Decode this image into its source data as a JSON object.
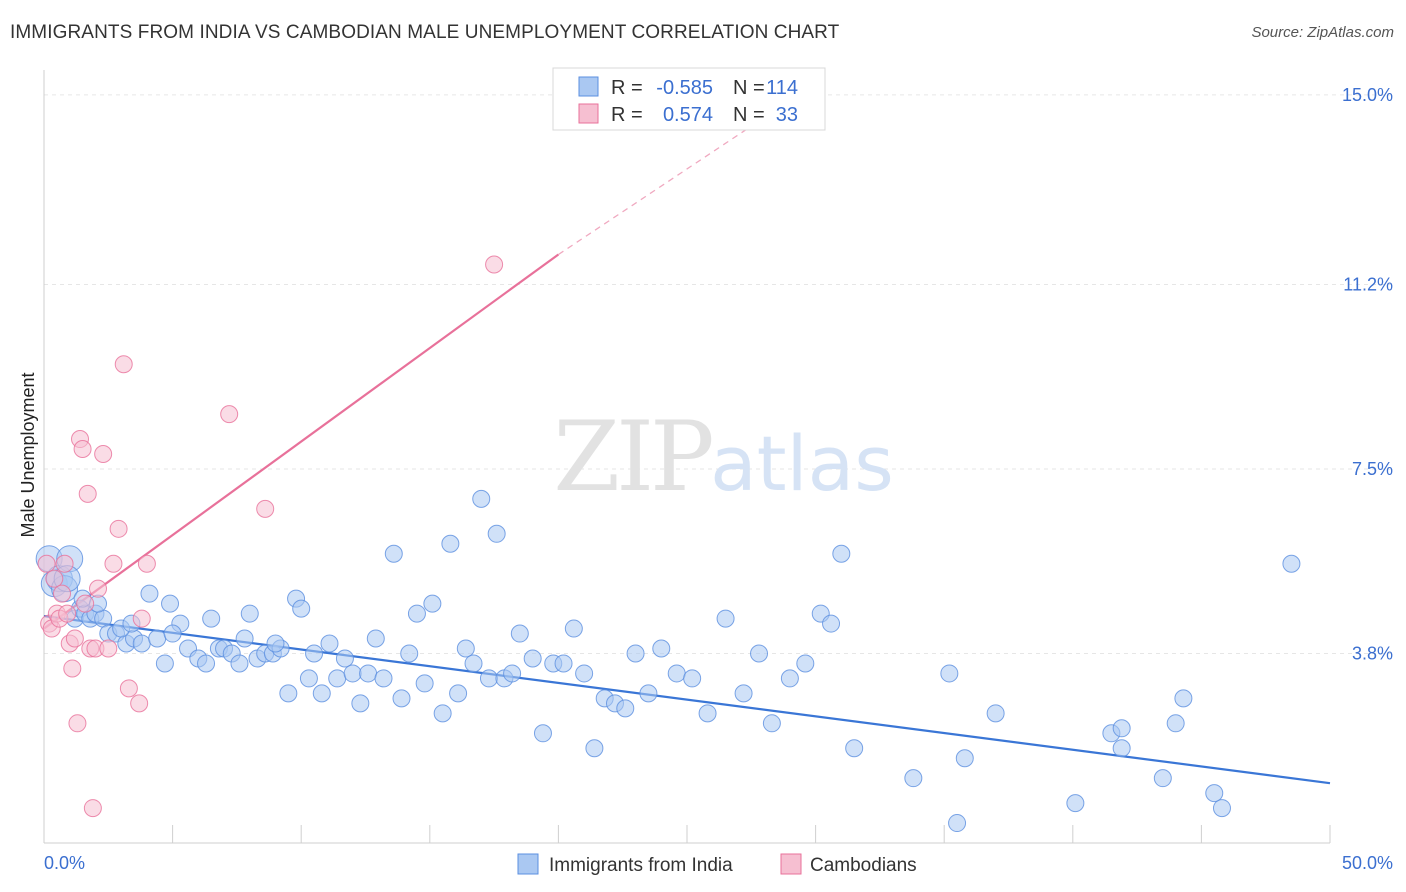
{
  "title": "IMMIGRANTS FROM INDIA VS CAMBODIAN MALE UNEMPLOYMENT CORRELATION CHART",
  "source": "Source: ZipAtlas.com",
  "watermark": {
    "zip": "ZIP",
    "atlas": "atlas"
  },
  "colors": {
    "blue": "#5b8fe0",
    "blue_fill": "#aac8f2",
    "pink": "#e8719a",
    "pink_fill": "#f6bfd1",
    "tick": "#3b6fd0",
    "grid": "#e3e3e3"
  },
  "legend": {
    "rows": [
      {
        "r_label": "R =",
        "r_value": "-0.585",
        "n_label": "N =",
        "n_value": "114"
      },
      {
        "r_label": "R =",
        "r_value": "0.574",
        "n_label": "N =",
        "n_value": "33"
      }
    ]
  },
  "bottom_legend": [
    "Immigrants from India",
    "Cambodians"
  ],
  "chart_data": {
    "type": "scatter",
    "title": "IMMIGRANTS FROM INDIA VS CAMBODIAN MALE UNEMPLOYMENT CORRELATION CHART",
    "xlabel": "",
    "ylabel": "Male Unemployment",
    "xlim": [
      0,
      50
    ],
    "ylim": [
      0,
      15.5
    ],
    "x_tick_labels": [
      "0.0%",
      "50.0%"
    ],
    "y_ticks": [
      3.8,
      7.5,
      11.2,
      15.0
    ],
    "y_tick_labels": [
      "3.8%",
      "7.5%",
      "11.2%",
      "15.0%"
    ],
    "grid": true,
    "legend_position": "top-center",
    "series": [
      {
        "name": "Immigrants from India",
        "color": "#5b8fe0",
        "r": -0.585,
        "n": 114,
        "trend": {
          "x": [
            0,
            50
          ],
          "y": [
            4.55,
            1.2
          ]
        },
        "points": [
          [
            0.2,
            5.7
          ],
          [
            0.4,
            5.2
          ],
          [
            0.6,
            5.3
          ],
          [
            0.8,
            5.1
          ],
          [
            1.0,
            5.7
          ],
          [
            1.2,
            4.5
          ],
          [
            1.4,
            4.7
          ],
          [
            1.6,
            4.6
          ],
          [
            1.8,
            4.5
          ],
          [
            2.0,
            4.6
          ],
          [
            2.3,
            4.5
          ],
          [
            2.5,
            4.2
          ],
          [
            2.8,
            4.2
          ],
          [
            3.2,
            4.0
          ],
          [
            3.5,
            4.1
          ],
          [
            3.8,
            4.0
          ],
          [
            4.1,
            5.0
          ],
          [
            4.4,
            4.1
          ],
          [
            4.7,
            3.6
          ],
          [
            4.9,
            4.8
          ],
          [
            5.3,
            4.4
          ],
          [
            5.6,
            3.9
          ],
          [
            6.0,
            3.7
          ],
          [
            6.3,
            3.6
          ],
          [
            6.5,
            4.5
          ],
          [
            6.8,
            3.9
          ],
          [
            7.0,
            3.9
          ],
          [
            7.3,
            3.8
          ],
          [
            7.6,
            3.6
          ],
          [
            7.8,
            4.1
          ],
          [
            8.0,
            4.6
          ],
          [
            8.3,
            3.7
          ],
          [
            8.6,
            3.8
          ],
          [
            8.9,
            3.8
          ],
          [
            9.2,
            3.9
          ],
          [
            9.5,
            3.0
          ],
          [
            9.8,
            4.9
          ],
          [
            10.0,
            4.7
          ],
          [
            10.3,
            3.3
          ],
          [
            10.5,
            3.8
          ],
          [
            10.8,
            3.0
          ],
          [
            11.1,
            4.0
          ],
          [
            11.4,
            3.3
          ],
          [
            11.7,
            3.7
          ],
          [
            12.0,
            3.4
          ],
          [
            12.3,
            2.8
          ],
          [
            12.6,
            3.4
          ],
          [
            12.9,
            4.1
          ],
          [
            13.2,
            3.3
          ],
          [
            13.6,
            5.8
          ],
          [
            13.9,
            2.9
          ],
          [
            14.2,
            3.8
          ],
          [
            14.5,
            4.6
          ],
          [
            14.8,
            3.2
          ],
          [
            15.1,
            4.8
          ],
          [
            15.5,
            2.6
          ],
          [
            15.8,
            6.0
          ],
          [
            16.1,
            3.0
          ],
          [
            16.4,
            3.9
          ],
          [
            16.7,
            3.6
          ],
          [
            17.0,
            6.9
          ],
          [
            17.3,
            3.3
          ],
          [
            17.6,
            6.2
          ],
          [
            17.9,
            3.3
          ],
          [
            18.2,
            3.4
          ],
          [
            18.5,
            4.2
          ],
          [
            19.0,
            3.7
          ],
          [
            19.4,
            2.2
          ],
          [
            19.8,
            3.6
          ],
          [
            20.2,
            3.6
          ],
          [
            20.6,
            4.3
          ],
          [
            21.0,
            3.4
          ],
          [
            21.4,
            1.9
          ],
          [
            21.8,
            2.9
          ],
          [
            22.2,
            2.8
          ],
          [
            22.6,
            2.7
          ],
          [
            23.0,
            3.8
          ],
          [
            23.5,
            3.0
          ],
          [
            24.0,
            3.9
          ],
          [
            24.6,
            3.4
          ],
          [
            25.2,
            3.3
          ],
          [
            25.8,
            2.6
          ],
          [
            26.5,
            4.5
          ],
          [
            27.2,
            3.0
          ],
          [
            27.8,
            3.8
          ],
          [
            28.3,
            2.4
          ],
          [
            29.0,
            3.3
          ],
          [
            29.6,
            3.6
          ],
          [
            30.2,
            4.6
          ],
          [
            30.6,
            4.4
          ],
          [
            31.0,
            5.8
          ],
          [
            31.5,
            1.9
          ],
          [
            33.8,
            1.3
          ],
          [
            35.5,
            0.4
          ],
          [
            35.8,
            1.7
          ],
          [
            35.2,
            3.4
          ],
          [
            37.0,
            2.6
          ],
          [
            40.1,
            0.8
          ],
          [
            41.5,
            2.2
          ],
          [
            41.9,
            1.9
          ],
          [
            41.9,
            2.3
          ],
          [
            43.5,
            1.3
          ],
          [
            44.0,
            2.4
          ],
          [
            44.3,
            2.9
          ],
          [
            45.5,
            1.0
          ],
          [
            45.8,
            0.7
          ],
          [
            48.5,
            5.6
          ],
          [
            0.9,
            5.3
          ],
          [
            1.5,
            4.9
          ],
          [
            2.1,
            4.8
          ],
          [
            3.0,
            4.3
          ],
          [
            3.4,
            4.4
          ],
          [
            5.0,
            4.2
          ],
          [
            9.0,
            4.0
          ]
        ]
      },
      {
        "name": "Cambodians",
        "color": "#e8719a",
        "r": 0.574,
        "n": 33,
        "trend": {
          "x": [
            0,
            20
          ],
          "y": [
            4.3,
            11.8
          ]
        },
        "trend_dashed": {
          "x": [
            20,
            30.2
          ],
          "y": [
            11.8,
            15.3
          ]
        },
        "points": [
          [
            0.1,
            5.6
          ],
          [
            0.2,
            4.4
          ],
          [
            0.3,
            4.3
          ],
          [
            0.4,
            5.3
          ],
          [
            0.5,
            4.6
          ],
          [
            0.6,
            4.5
          ],
          [
            0.7,
            5.0
          ],
          [
            0.8,
            5.6
          ],
          [
            1.0,
            4.0
          ],
          [
            1.1,
            3.5
          ],
          [
            1.2,
            4.1
          ],
          [
            1.3,
            2.4
          ],
          [
            1.4,
            8.1
          ],
          [
            1.5,
            7.9
          ],
          [
            1.6,
            4.8
          ],
          [
            1.7,
            7.0
          ],
          [
            1.8,
            3.9
          ],
          [
            2.0,
            3.9
          ],
          [
            2.1,
            5.1
          ],
          [
            2.3,
            7.8
          ],
          [
            2.5,
            3.9
          ],
          [
            2.7,
            5.6
          ],
          [
            2.9,
            6.3
          ],
          [
            3.1,
            9.6
          ],
          [
            3.3,
            3.1
          ],
          [
            3.7,
            2.8
          ],
          [
            3.8,
            4.5
          ],
          [
            4.0,
            5.6
          ],
          [
            7.2,
            8.6
          ],
          [
            8.6,
            6.7
          ],
          [
            1.9,
            0.7
          ],
          [
            17.5,
            11.6
          ],
          [
            0.9,
            4.6
          ]
        ]
      }
    ]
  }
}
